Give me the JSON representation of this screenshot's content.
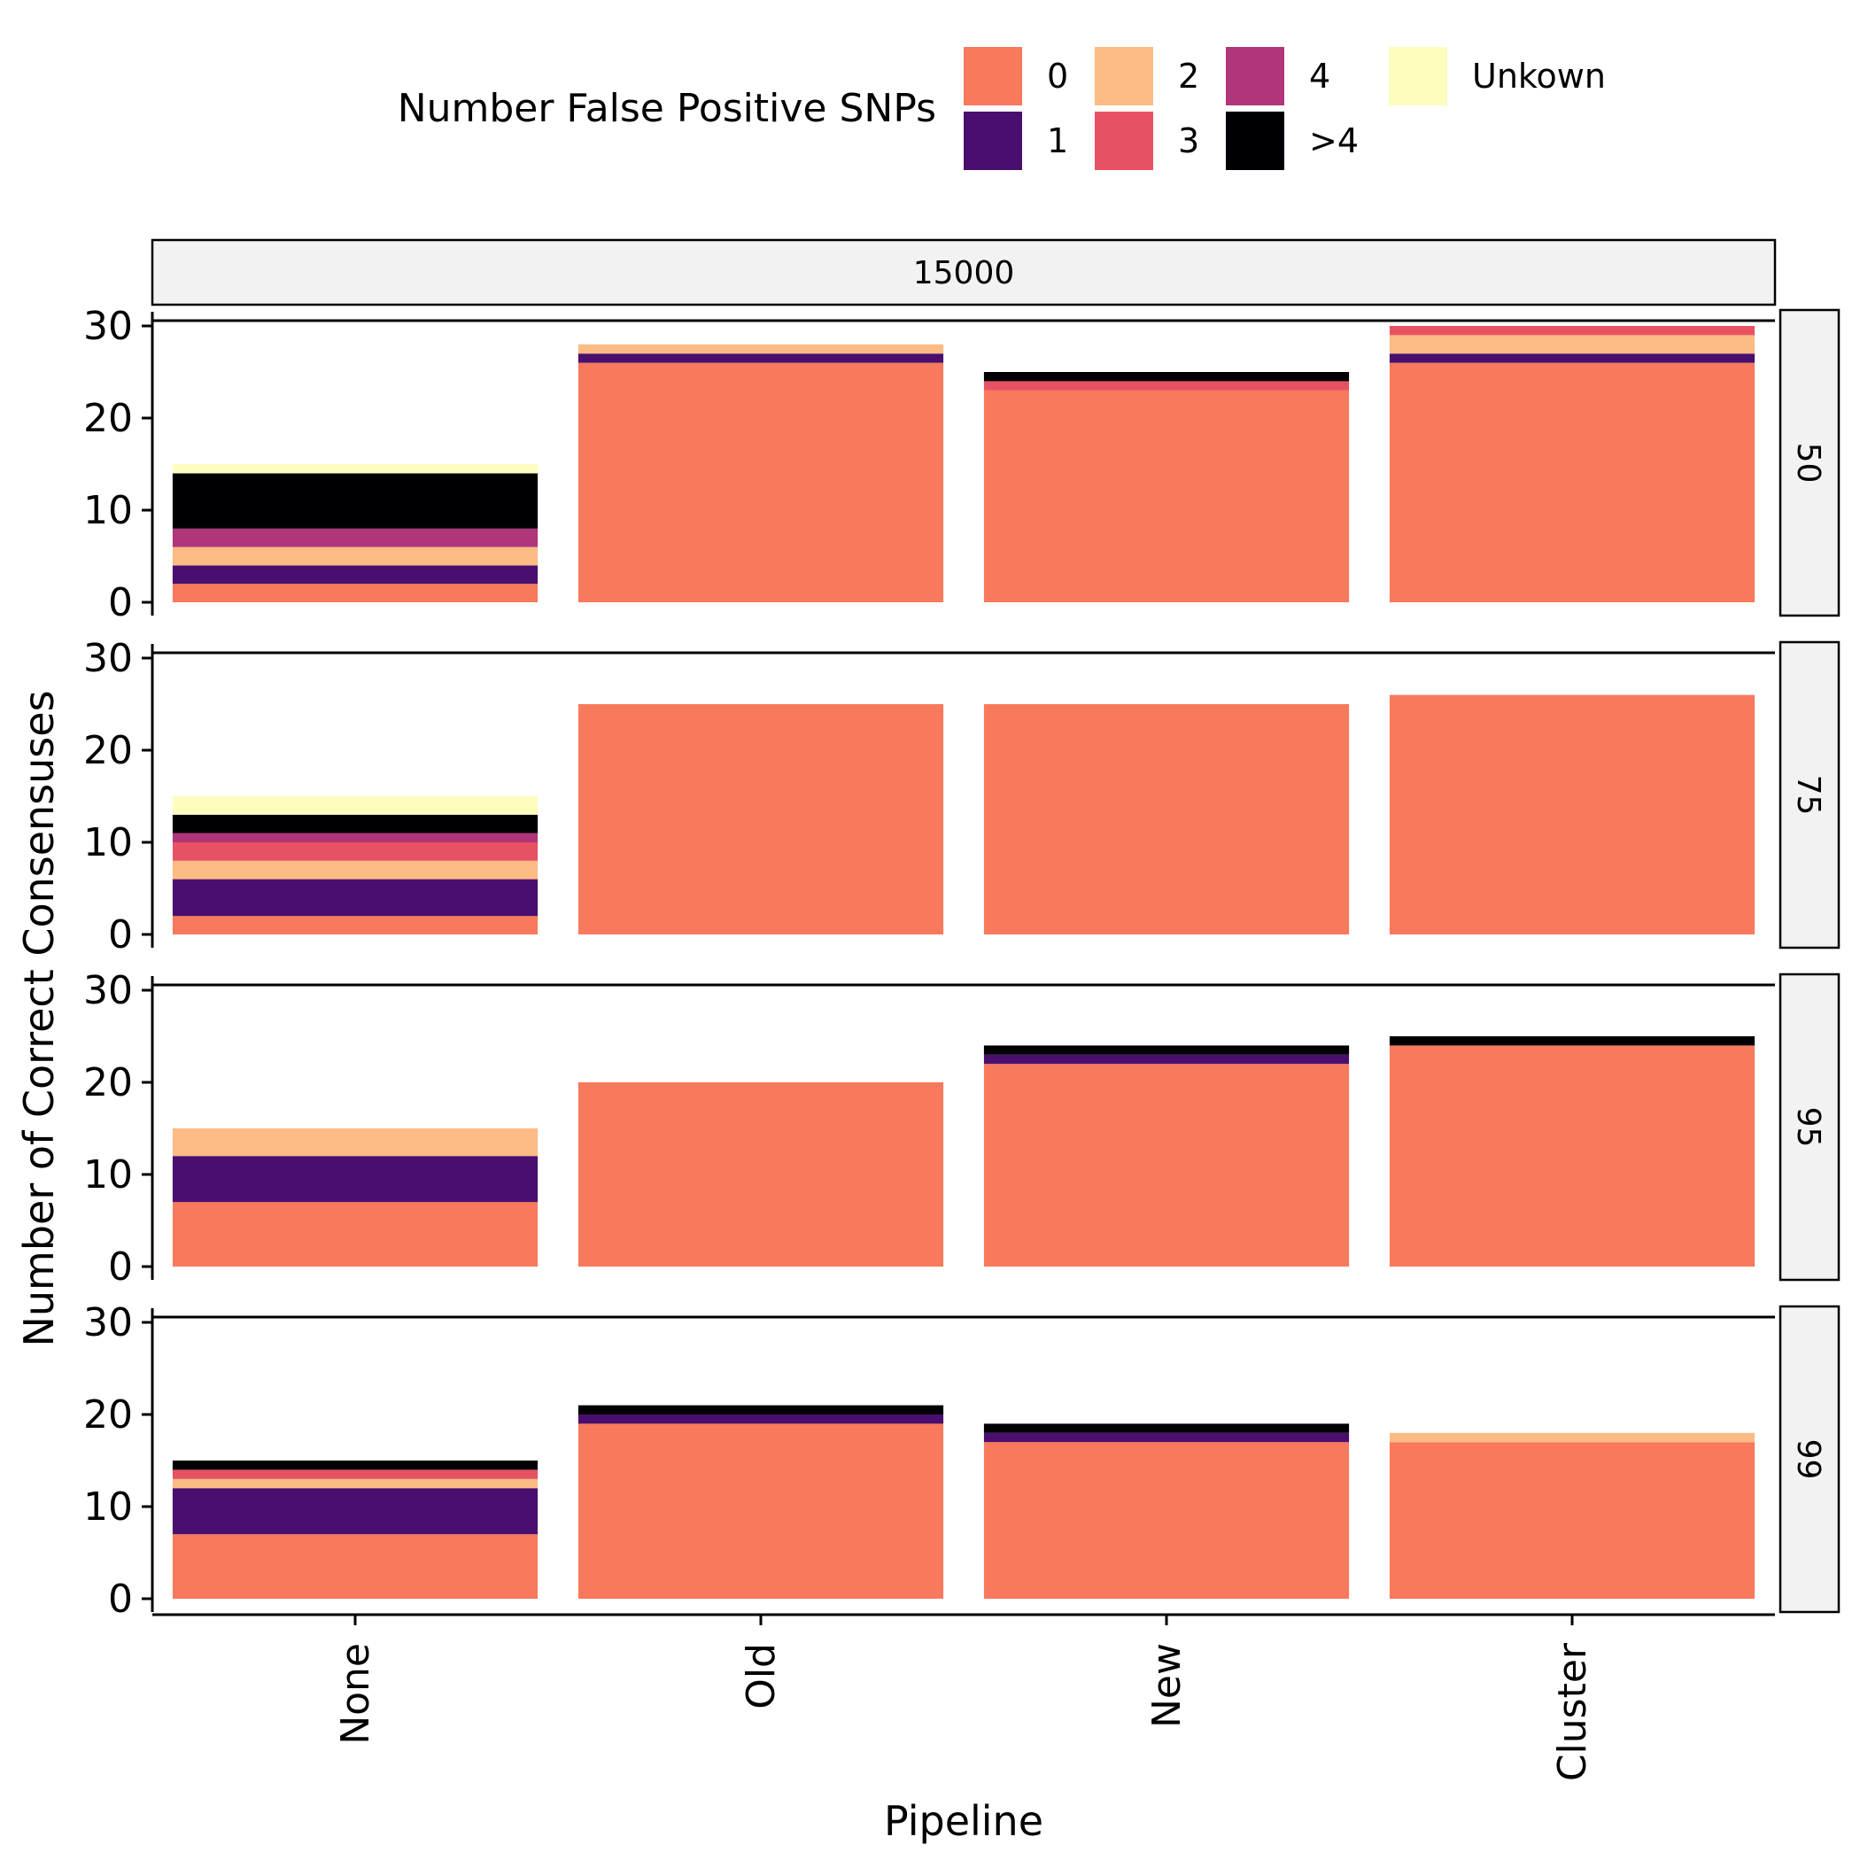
{
  "chart_data": {
    "type": "bar",
    "stacked": true,
    "categories": [
      "None",
      "Old",
      "New",
      "Cluster"
    ],
    "xlabel": "Pipeline",
    "ylabel": "Number of Correct Consensuses",
    "ylim": [
      0,
      30
    ],
    "yticks": [
      0,
      10,
      20,
      30
    ],
    "grid": false,
    "legend": {
      "title": "Number False Positive SNPs",
      "placement": "top",
      "entries": [
        {
          "key": "0",
          "label": "0",
          "color": "#F8795C"
        },
        {
          "key": "1",
          "label": "1",
          "color": "#4A0F6E"
        },
        {
          "key": "2",
          "label": "2",
          "color": "#FDBB84"
        },
        {
          "key": "3",
          "label": "3",
          "color": "#E75263"
        },
        {
          "key": "4",
          "label": "4",
          "color": "#B0357B"
        },
        {
          "key": ">4",
          "label": ">4",
          "color": "#000004"
        },
        {
          "key": "Unkown",
          "label": "Unkown",
          "color": "#FCFDBF"
        }
      ]
    },
    "stack_order": [
      "0",
      "1",
      "2",
      "3",
      "4",
      ">4",
      "Unkown"
    ],
    "column_facet": "15000",
    "panels": [
      {
        "facet": "50",
        "stacks": [
          {
            "0": 2,
            "1": 2,
            "2": 2,
            "3": 0,
            "4": 2,
            ">4": 6,
            "Unkown": 1
          },
          {
            "0": 26,
            "1": 1,
            "2": 1,
            "3": 0,
            "4": 0,
            ">4": 0,
            "Unkown": 0
          },
          {
            "0": 23,
            "1": 0,
            "2": 0,
            "3": 1,
            "4": 0,
            ">4": 1,
            "Unkown": 0
          },
          {
            "0": 26,
            "1": 1,
            "2": 2,
            "3": 1,
            "4": 0,
            ">4": 0,
            "Unkown": 0
          }
        ]
      },
      {
        "facet": "75",
        "stacks": [
          {
            "0": 2,
            "1": 4,
            "2": 2,
            "3": 2,
            "4": 1,
            ">4": 2,
            "Unkown": 2
          },
          {
            "0": 25,
            "1": 0,
            "2": 0,
            "3": 0,
            "4": 0,
            ">4": 0,
            "Unkown": 0
          },
          {
            "0": 25,
            "1": 0,
            "2": 0,
            "3": 0,
            "4": 0,
            ">4": 0,
            "Unkown": 0
          },
          {
            "0": 26,
            "1": 0,
            "2": 0,
            "3": 0,
            "4": 0,
            ">4": 0,
            "Unkown": 0
          }
        ]
      },
      {
        "facet": "95",
        "stacks": [
          {
            "0": 7,
            "1": 5,
            "2": 3,
            "3": 0,
            "4": 0,
            ">4": 0,
            "Unkown": 0
          },
          {
            "0": 20,
            "1": 0,
            "2": 0,
            "3": 0,
            "4": 0,
            ">4": 0,
            "Unkown": 0
          },
          {
            "0": 22,
            "1": 1,
            "2": 0,
            "3": 0,
            "4": 0,
            ">4": 1,
            "Unkown": 0
          },
          {
            "0": 24,
            "1": 0,
            "2": 0,
            "3": 0,
            "4": 0,
            ">4": 1,
            "Unkown": 0
          }
        ]
      },
      {
        "facet": "99",
        "stacks": [
          {
            "0": 7,
            "1": 5,
            "2": 1,
            "3": 1,
            "4": 0,
            ">4": 1,
            "Unkown": 0
          },
          {
            "0": 19,
            "1": 1,
            "2": 0,
            "3": 0,
            "4": 0,
            ">4": 1,
            "Unkown": 0
          },
          {
            "0": 17,
            "1": 1,
            "2": 0,
            "3": 0,
            "4": 0,
            ">4": 1,
            "Unkown": 0
          },
          {
            "0": 17,
            "1": 0,
            "2": 1,
            "3": 0,
            "4": 0,
            ">4": 0,
            "Unkown": 0
          }
        ]
      }
    ]
  }
}
